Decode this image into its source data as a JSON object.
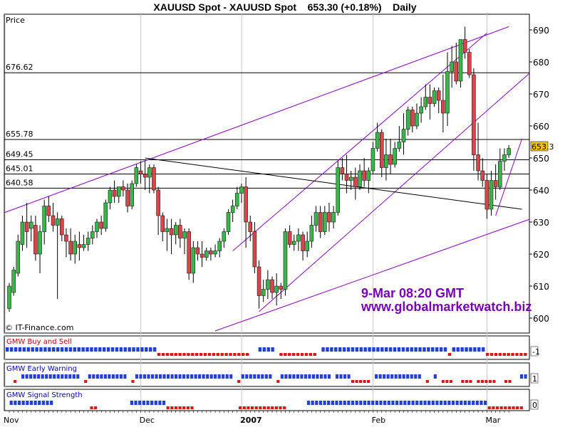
{
  "header": {
    "title": "XAUUSD Spot - XAUUSD Spot    653.30 (+0.18%)    Daily"
  },
  "chart_data": {
    "type": "candlestick",
    "price_pane_label": "Price",
    "copyright": "© IT-Finance.com",
    "watermark": [
      "9-Mar 08:20 GMT",
      "www.globalmarketwatch.biz"
    ],
    "last_price_label": "653.3",
    "ylim": [
      596,
      692
    ],
    "y_ticks": [
      600,
      610,
      620,
      630,
      640,
      650,
      660,
      670,
      680,
      690
    ],
    "x_labels": [
      {
        "label": "Nov",
        "bar": 0
      },
      {
        "label": "Dec",
        "bar": 31
      },
      {
        "label": "2007",
        "bar": 54
      },
      {
        "label": "Feb",
        "bar": 84
      },
      {
        "label": "Mar",
        "bar": 110
      }
    ],
    "horizontal_levels": [
      {
        "label": "676.62",
        "value": 676.62
      },
      {
        "label": "655.78",
        "value": 655.78
      },
      {
        "label": "649.45",
        "value": 649.45
      },
      {
        "label": "645.01",
        "value": 645.01
      },
      {
        "label": "640.58",
        "value": 640.58
      }
    ],
    "trendlines": [
      {
        "color": "#8b00c8",
        "from": [
          -1,
          633
        ],
        "to": [
          114,
          691
        ]
      },
      {
        "color": "#8b00c8",
        "from": [
          47,
          596
        ],
        "to": [
          119,
          631
        ]
      },
      {
        "color": "#8b00c8",
        "from": [
          51,
          621
        ],
        "to": [
          109,
          689
        ]
      },
      {
        "color": "#8b00c8",
        "from": [
          57,
          602
        ],
        "to": [
          120,
          678
        ]
      },
      {
        "color": "#8b00c8",
        "from": [
          111,
          632
        ],
        "to": [
          117,
          656
        ]
      },
      {
        "color": "#000000",
        "from": [
          31,
          650
        ],
        "to": [
          117,
          634
        ]
      }
    ],
    "ohlc": [
      [
        603,
        611,
        602,
        610
      ],
      [
        608,
        616,
        607,
        615
      ],
      [
        614,
        626,
        613,
        624
      ],
      [
        623,
        632,
        621,
        630
      ],
      [
        630,
        636,
        622,
        627
      ],
      [
        628,
        632,
        624,
        630
      ],
      [
        629,
        632,
        618,
        620
      ],
      [
        620,
        629,
        614,
        627
      ],
      [
        627,
        637,
        623,
        635
      ],
      [
        635,
        638,
        630,
        632
      ],
      [
        632,
        636,
        627,
        629
      ],
      [
        629,
        633,
        606,
        631
      ],
      [
        631,
        632,
        624,
        626
      ],
      [
        626,
        628,
        619,
        624
      ],
      [
        624,
        628,
        618,
        620
      ],
      [
        620,
        626,
        617,
        624
      ],
      [
        623,
        627,
        618,
        622
      ],
      [
        622,
        626,
        621,
        623
      ],
      [
        623,
        627,
        621,
        625
      ],
      [
        625,
        629,
        623,
        627
      ],
      [
        627,
        631,
        625,
        630
      ],
      [
        630,
        632,
        626,
        628
      ],
      [
        628,
        637,
        627,
        636
      ],
      [
        636,
        641,
        634,
        640
      ],
      [
        640,
        643,
        636,
        638
      ],
      [
        638,
        641,
        636,
        641
      ],
      [
        641,
        643,
        638,
        640
      ],
      [
        640,
        642,
        633,
        635
      ],
      [
        635,
        643,
        634,
        642
      ],
      [
        642,
        648,
        641,
        647
      ],
      [
        646,
        649,
        642,
        645
      ],
      [
        645,
        649,
        640,
        644
      ],
      [
        644,
        648,
        639,
        647
      ],
      [
        647,
        648,
        639,
        640
      ],
      [
        640,
        641,
        626,
        632
      ],
      [
        632,
        633,
        624,
        627
      ],
      [
        627,
        631,
        621,
        628
      ],
      [
        628,
        631,
        620,
        626
      ],
      [
        626,
        630,
        623,
        629
      ],
      [
        629,
        631,
        622,
        625
      ],
      [
        625,
        628,
        620,
        627
      ],
      [
        627,
        628,
        612,
        614
      ],
      [
        614,
        624,
        611,
        622
      ],
      [
        622,
        624,
        618,
        620
      ],
      [
        620,
        624,
        616,
        619
      ],
      [
        619,
        622,
        618,
        621
      ],
      [
        621,
        622,
        618,
        620
      ],
      [
        620,
        623,
        619,
        621
      ],
      [
        621,
        625,
        619,
        624
      ],
      [
        624,
        628,
        622,
        627
      ],
      [
        627,
        634,
        626,
        633
      ],
      [
        633,
        637,
        630,
        635
      ],
      [
        635,
        641,
        634,
        639
      ],
      [
        639,
        642,
        636,
        641
      ],
      [
        641,
        644,
        622,
        630
      ],
      [
        630,
        632,
        624,
        627
      ],
      [
        627,
        630,
        614,
        616
      ],
      [
        616,
        618,
        603,
        607
      ],
      [
        607,
        612,
        605,
        609
      ],
      [
        609,
        615,
        606,
        612
      ],
      [
        612,
        613,
        606,
        608
      ],
      [
        608,
        614,
        604,
        610
      ],
      [
        610,
        611,
        606,
        609
      ],
      [
        609,
        628,
        607,
        627
      ],
      [
        627,
        629,
        622,
        623
      ],
      [
        623,
        626,
        621,
        624
      ],
      [
        624,
        628,
        621,
        626
      ],
      [
        626,
        627,
        618,
        621
      ],
      [
        621,
        627,
        619,
        624
      ],
      [
        624,
        632,
        622,
        629
      ],
      [
        629,
        635,
        627,
        633
      ],
      [
        633,
        635,
        625,
        627
      ],
      [
        627,
        635,
        626,
        633
      ],
      [
        633,
        636,
        627,
        630
      ],
      [
        630,
        635,
        628,
        633
      ],
      [
        633,
        649,
        632,
        647
      ],
      [
        647,
        650,
        643,
        645
      ],
      [
        645,
        651,
        639,
        643
      ],
      [
        643,
        646,
        640,
        644
      ],
      [
        644,
        647,
        637,
        641
      ],
      [
        641,
        648,
        640,
        646
      ],
      [
        646,
        650,
        641,
        643
      ],
      [
        643,
        647,
        639,
        646
      ],
      [
        646,
        655,
        645,
        653
      ],
      [
        653,
        661,
        652,
        658
      ],
      [
        658,
        659,
        644,
        647
      ],
      [
        647,
        656,
        643,
        651
      ],
      [
        651,
        656,
        645,
        648
      ],
      [
        648,
        655,
        647,
        653
      ],
      [
        653,
        660,
        652,
        655
      ],
      [
        655,
        664,
        651,
        659
      ],
      [
        659,
        666,
        657,
        665
      ],
      [
        665,
        666,
        658,
        660
      ],
      [
        660,
        667,
        659,
        664
      ],
      [
        664,
        669,
        661,
        666
      ],
      [
        666,
        673,
        665,
        669
      ],
      [
        669,
        673,
        662,
        667
      ],
      [
        667,
        672,
        666,
        671
      ],
      [
        671,
        672,
        664,
        668
      ],
      [
        668,
        676,
        658,
        664
      ],
      [
        664,
        683,
        660,
        677
      ],
      [
        677,
        685,
        672,
        680
      ],
      [
        680,
        686,
        673,
        674
      ],
      [
        674,
        687,
        672,
        687
      ],
      [
        687,
        691,
        681,
        683
      ],
      [
        683,
        684,
        675,
        676
      ],
      [
        676,
        678,
        646,
        651
      ],
      [
        651,
        661,
        643,
        646
      ],
      [
        646,
        650,
        641,
        643
      ],
      [
        643,
        645,
        631,
        634
      ],
      [
        634,
        646,
        632,
        643
      ],
      [
        643,
        648,
        637,
        641
      ],
      [
        641,
        653,
        640,
        649
      ],
      [
        649,
        653,
        646,
        651
      ],
      [
        651,
        654,
        650,
        653
      ]
    ],
    "indicator_panes": [
      {
        "name": "GMW Buy and Sell",
        "value_label": "-1",
        "name_color": "#c80000",
        "codes": "BBBBBBBBBBBBBBBBBBBBBBBBBBBBBBBBBBBBRRRRRRRRRRRRRRRRRRRRRR..BBBB.RRRRRRRRR.BBBBBBBBBBBBBBBBBBBBBBBBBBBBBBRBBBBBBBBRRRRRRRRRR"
      },
      {
        "name": "GMW Early Warning",
        "value_label": "1",
        "name_color": "#0000b4",
        "codes": "..R.BBBBBBBBBBBBBBB.RBBBBBBBBBB.RBBBBBBBBBBBBBBBBBBBBBBBBB.RBBBBBBBB.RBBBBBBBBBBBBB.BBBBRRRRR.BBBBBBBBBBBB.R.B.RRR..RRR.RRRRR..RR..BB"
      },
      {
        "name": "GMW Signal Strength",
        "value_label": "0",
        "name_color": "#0000b4",
        "codes": ".BBBBBBBBBBB.........RR........BBBBBBBBBRRRRRRR...........RRRRRRRRRRRR.....BBBBBBBBBBBBBBBBBBBBBBBBBBBBBBBBBBBBBBBBBBBBBRRRRRRRRR."
      }
    ],
    "colors": {
      "up_candle": "#39b54a",
      "down_candle": "#d9454a",
      "indicator_blue": "#2040d8",
      "indicator_red": "#d81818",
      "trendline_purple": "#8b00c8",
      "watermark": "#7a00b8",
      "last_price_box": "#f5c400"
    }
  }
}
